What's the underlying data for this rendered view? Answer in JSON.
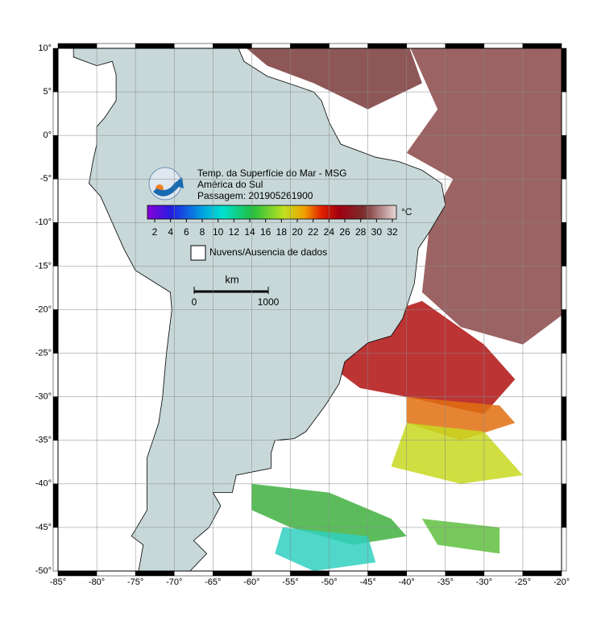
{
  "map": {
    "title": [
      "Temp. da Superfície do Mar - MSG",
      "América do Sul",
      "Passagem: 201905261900"
    ],
    "colorbar": {
      "unit": "°C",
      "ticks": [
        2,
        4,
        6,
        8,
        10,
        12,
        14,
        16,
        18,
        20,
        22,
        24,
        26,
        28,
        30,
        32
      ]
    },
    "legend": "Nuvens/Ausencia de dados",
    "scale": {
      "unit": "km",
      "ticks": [
        0,
        1000
      ]
    },
    "lon_ticks": [
      {
        "value": -85,
        "label": "-85°"
      },
      {
        "value": -80,
        "label": "-80°"
      },
      {
        "value": -75,
        "label": "-75°"
      },
      {
        "value": -70,
        "label": "-70°"
      },
      {
        "value": -65,
        "label": "-65°"
      },
      {
        "value": -60,
        "label": "-60°"
      },
      {
        "value": -55,
        "label": "-55°"
      },
      {
        "value": -50,
        "label": "-50°"
      },
      {
        "value": -45,
        "label": "-45°"
      },
      {
        "value": -40,
        "label": "-40°"
      },
      {
        "value": -35,
        "label": "-35°"
      },
      {
        "value": -30,
        "label": "-30°"
      },
      {
        "value": -25,
        "label": "-25°"
      },
      {
        "value": -20,
        "label": "-20°"
      }
    ],
    "lat_ticks": [
      {
        "value": 10,
        "label": "10°"
      },
      {
        "value": 5,
        "label": "5°"
      },
      {
        "value": 0,
        "label": "0°"
      },
      {
        "value": -5,
        "label": "-5°"
      },
      {
        "value": -10,
        "label": "-10°"
      },
      {
        "value": -15,
        "label": "-15°"
      },
      {
        "value": -20,
        "label": "-20°"
      },
      {
        "value": -25,
        "label": "-25°"
      },
      {
        "value": -30,
        "label": "-30°"
      },
      {
        "value": -35,
        "label": "-35°"
      },
      {
        "value": -40,
        "label": "-40°"
      },
      {
        "value": -45,
        "label": "-45°"
      },
      {
        "value": -50,
        "label": "-50°"
      }
    ]
  }
}
